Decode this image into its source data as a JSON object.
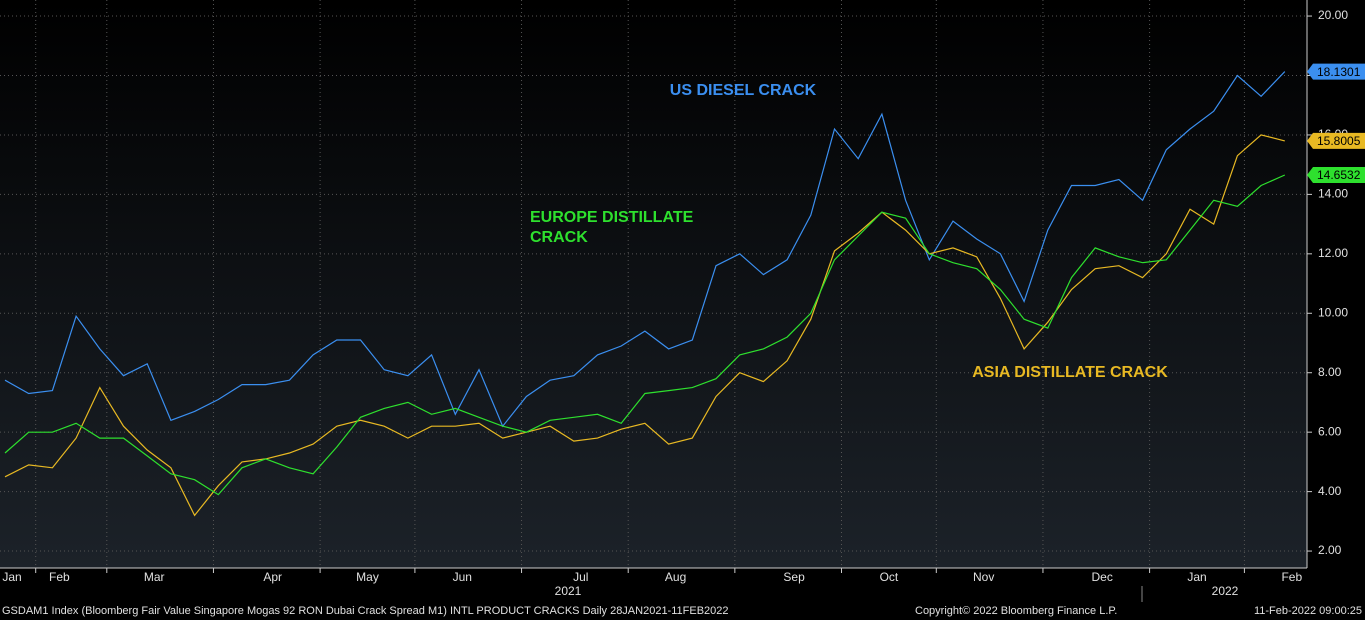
{
  "chart_data": {
    "type": "line",
    "categories": [
      "Jan",
      null,
      "Feb",
      null,
      null,
      null,
      "Mar",
      null,
      null,
      null,
      null,
      "Apr",
      null,
      null,
      null,
      "May",
      null,
      null,
      null,
      "Jun",
      null,
      null,
      null,
      null,
      "Jul",
      null,
      null,
      null,
      "Aug",
      null,
      null,
      null,
      null,
      "Sep",
      null,
      null,
      null,
      "Oct",
      null,
      null,
      null,
      "Nov",
      null,
      null,
      null,
      null,
      "Dec",
      null,
      null,
      null,
      "Jan",
      null,
      null,
      null,
      "Feb"
    ],
    "year_labels": [
      "2021",
      "2022"
    ],
    "series": [
      {
        "name": "US DIESEL CRACK",
        "color": "#3b8ff0",
        "values": [
          7.75,
          7.3,
          7.4,
          9.9,
          8.8,
          7.9,
          8.3,
          6.4,
          6.7,
          7.1,
          7.6,
          7.6,
          7.75,
          8.6,
          9.1,
          9.1,
          8.1,
          7.9,
          8.6,
          6.6,
          8.1,
          6.2,
          7.2,
          7.75,
          7.9,
          8.6,
          8.9,
          9.4,
          8.8,
          9.1,
          11.6,
          12.0,
          11.3,
          11.8,
          13.3,
          16.2,
          15.2,
          16.7,
          13.8,
          11.8,
          13.1,
          12.5,
          12.0,
          10.4,
          12.8,
          14.3,
          14.3,
          14.5,
          13.8,
          15.5,
          16.2,
          16.8,
          18.0,
          17.3,
          18.1301
        ]
      },
      {
        "name": "ASIA DISTILLATE CRACK",
        "color": "#e8b923",
        "values": [
          4.5,
          4.9,
          4.8,
          5.8,
          7.5,
          6.2,
          5.4,
          4.8,
          3.2,
          4.2,
          5.0,
          5.1,
          5.3,
          5.6,
          6.2,
          6.4,
          6.2,
          5.8,
          6.2,
          6.2,
          6.3,
          5.8,
          6.0,
          6.2,
          5.7,
          5.8,
          6.1,
          6.3,
          5.6,
          5.8,
          7.2,
          8.0,
          7.7,
          8.4,
          9.8,
          12.1,
          12.7,
          13.4,
          12.8,
          12.0,
          12.2,
          11.9,
          10.5,
          8.8,
          9.7,
          10.8,
          11.5,
          11.6,
          11.2,
          12.0,
          13.5,
          13.0,
          15.3,
          16.0,
          15.8005
        ]
      },
      {
        "name": "EUROPE DISTILLATE CRACK",
        "color": "#2ee02e",
        "values": [
          5.3,
          6.0,
          6.0,
          6.3,
          5.8,
          5.8,
          5.2,
          4.6,
          4.4,
          3.9,
          4.8,
          5.1,
          4.8,
          4.6,
          5.5,
          6.5,
          6.8,
          7.0,
          6.6,
          6.8,
          6.5,
          6.2,
          6.0,
          6.4,
          6.5,
          6.6,
          6.3,
          7.3,
          7.4,
          7.5,
          7.8,
          8.6,
          8.8,
          9.2,
          10.0,
          11.8,
          12.6,
          13.4,
          13.2,
          12.0,
          11.7,
          11.5,
          10.8,
          9.8,
          9.5,
          11.2,
          12.2,
          11.9,
          11.7,
          11.8,
          12.8,
          13.8,
          13.6,
          14.3,
          14.6532
        ]
      }
    ],
    "annotations": [
      {
        "lines": [
          "US DIESEL CRACK"
        ],
        "color": "#3b8ff0"
      },
      {
        "lines": [
          "EUROPE DISTILLATE",
          "CRACK"
        ],
        "color": "#2ee02e"
      },
      {
        "lines": [
          "ASIA DISTILLATE CRACK"
        ],
        "color": "#e8b923"
      }
    ],
    "ylim": [
      1.43,
      20.54
    ],
    "yticks": [
      {
        "value": 2,
        "label": "2.00"
      },
      {
        "value": 4,
        "label": "4.00"
      },
      {
        "value": 6,
        "label": "6.00"
      },
      {
        "value": 8,
        "label": "8.00"
      },
      {
        "value": 10,
        "label": "10.00"
      },
      {
        "value": 12,
        "label": "12.00"
      },
      {
        "value": 14,
        "label": "14.00"
      },
      {
        "value": 16,
        "label": "16.00"
      },
      {
        "value": 18,
        "label": "18.00"
      },
      {
        "value": 20,
        "label": "20.00"
      }
    ],
    "grid": true,
    "footer": {
      "source": "GSDAM1 Index (Bloomberg Fair Value Singapore Mogas 92 RON Dubai Crack Spread M1) INTL PRODUCT CRACKS  Daily 28JAN2021-11FEB2022",
      "copyright": "Copyright© 2022 Bloomberg Finance L.P.",
      "timestamp": "11-Feb-2022 09:00:25"
    }
  }
}
